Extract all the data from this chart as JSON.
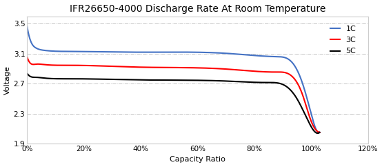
{
  "title": "IFR26650-4000 Discharge Rate At Room Temperature",
  "xlabel": "Capacity Ratio",
  "ylabel": "Voltage",
  "xlim": [
    0,
    1.2
  ],
  "ylim": [
    1.9,
    3.6
  ],
  "yticks": [
    1.9,
    2.3,
    2.7,
    3.1,
    3.5
  ],
  "xticks": [
    0.0,
    0.2,
    0.4,
    0.6,
    0.8,
    1.0,
    1.2
  ],
  "series": [
    {
      "label": "1C",
      "color": "#4472C4",
      "x_pts": [
        0.0,
        0.01,
        0.03,
        0.06,
        0.15,
        0.4,
        0.7,
        0.88,
        0.94,
        0.97,
        1.0,
        1.02,
        1.03
      ],
      "y_pts": [
        3.47,
        3.3,
        3.18,
        3.145,
        3.13,
        3.12,
        3.105,
        3.06,
        2.95,
        2.7,
        2.3,
        2.07,
        2.05
      ]
    },
    {
      "label": "3C",
      "color": "#FF0000",
      "x_pts": [
        0.0,
        0.01,
        0.03,
        0.06,
        0.15,
        0.4,
        0.7,
        0.88,
        0.94,
        0.97,
        1.0,
        1.02,
        1.03
      ],
      "y_pts": [
        3.06,
        2.98,
        2.96,
        2.955,
        2.945,
        2.92,
        2.895,
        2.855,
        2.77,
        2.55,
        2.2,
        2.07,
        2.05
      ]
    },
    {
      "label": "5C",
      "color": "#000000",
      "x_pts": [
        0.0,
        0.01,
        0.03,
        0.06,
        0.15,
        0.4,
        0.7,
        0.85,
        0.91,
        0.95,
        0.99,
        1.01,
        1.03
      ],
      "y_pts": [
        2.84,
        2.8,
        2.785,
        2.775,
        2.765,
        2.75,
        2.735,
        2.715,
        2.67,
        2.5,
        2.2,
        2.07,
        2.05
      ]
    }
  ],
  "background_color": "#ffffff",
  "grid_color": "#aaaaaa",
  "grid_style": "-.",
  "title_fontsize": 10,
  "axis_fontsize": 8,
  "tick_fontsize": 7.5
}
